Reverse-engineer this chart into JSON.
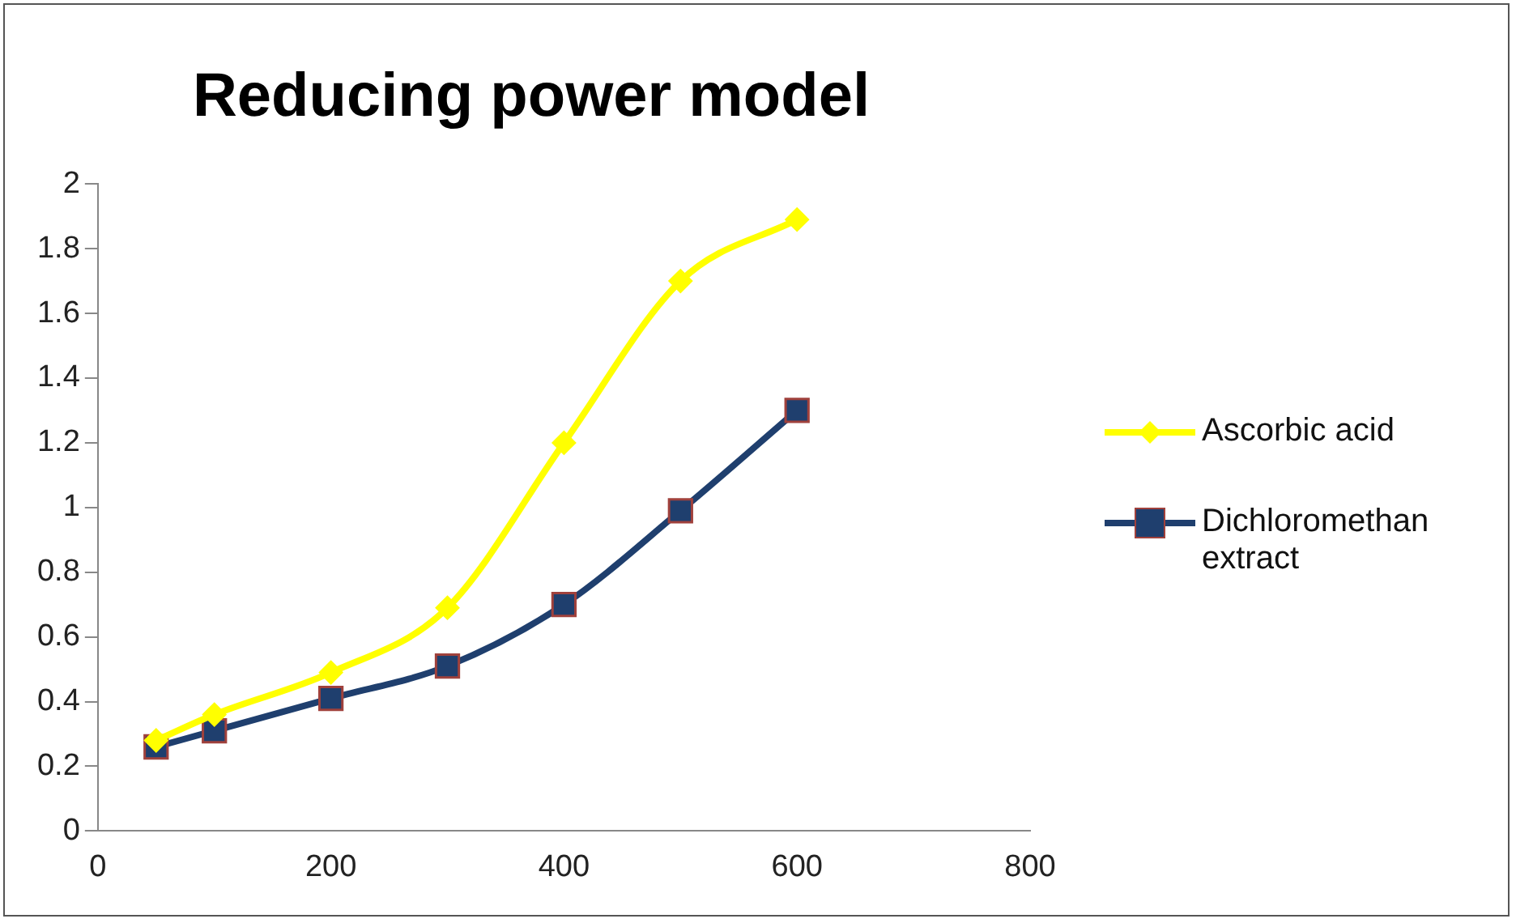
{
  "chart_data": {
    "type": "line",
    "title": "Reducing power model",
    "xlim": [
      0,
      800
    ],
    "xticks": [
      0,
      200,
      400,
      600,
      800
    ],
    "ylim": [
      0,
      2
    ],
    "yticks": [
      0,
      0.2,
      0.4,
      0.6,
      0.8,
      1,
      1.2,
      1.4,
      1.6,
      1.8,
      2
    ],
    "grid": false,
    "legend": "right",
    "series": [
      {
        "name": "Ascorbic acid",
        "color": "#ffff00",
        "marker": "diamond",
        "x": [
          50,
          100,
          200,
          300,
          400,
          500,
          600
        ],
        "values": [
          0.28,
          0.36,
          0.49,
          0.69,
          1.2,
          1.7,
          1.89
        ]
      },
      {
        "name": "Dichloromethan extract",
        "color": "#1f3f6e",
        "marker": "square",
        "x": [
          50,
          100,
          200,
          300,
          400,
          500,
          600
        ],
        "values": [
          0.26,
          0.31,
          0.41,
          0.51,
          0.7,
          0.99,
          1.3
        ]
      }
    ]
  }
}
